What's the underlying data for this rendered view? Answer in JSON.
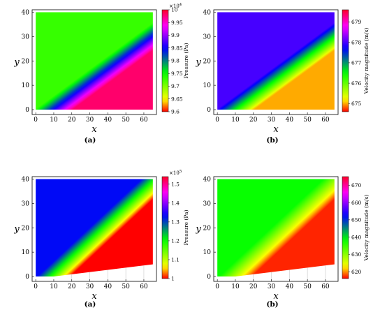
{
  "chart_data": [
    {
      "type": "heatmap",
      "caption": "(a)",
      "xlabel": "x",
      "ylabel": "y",
      "xlim": [
        -2,
        67
      ],
      "ylim": [
        -2,
        41
      ],
      "x_ticks": [
        0,
        10,
        20,
        30,
        40,
        50,
        60
      ],
      "y_ticks": [
        0,
        10,
        20,
        30,
        40
      ],
      "domain": {
        "x_min": 0,
        "x_max": 65,
        "y_min": 0,
        "y_max": 40,
        "wedge_start_x": 10,
        "lower_wall_end_y": 0
      },
      "field": {
        "upstream_value": 9.98,
        "downstream_value": 9.73,
        "wave_angle_end_y": 30
      },
      "colorbar": {
        "label": "Pressure (Pa)",
        "multiplier": "×10",
        "multiplier_exp": "4",
        "min": 9.6,
        "max": 10,
        "ticks": [
          "10",
          "9.95",
          "9.9",
          "9.85",
          "9.8",
          "9.75",
          "9.7",
          "9.65",
          "9.6"
        ]
      }
    },
    {
      "type": "heatmap",
      "caption": "(b)",
      "xlabel": "x",
      "ylabel": "y",
      "xlim": [
        -2,
        67
      ],
      "ylim": [
        -2,
        41
      ],
      "x_ticks": [
        0,
        10,
        20,
        30,
        40,
        50,
        60
      ],
      "y_ticks": [
        0,
        10,
        20,
        30,
        40
      ],
      "domain": {
        "x_min": 0,
        "x_max": 65,
        "y_min": 0,
        "y_max": 40,
        "wedge_start_x": 10,
        "lower_wall_end_y": 0
      },
      "field": {
        "upstream_value": 675,
        "downstream_value": 678,
        "wave_angle_end_y": 30
      },
      "colorbar": {
        "label": "Velocity magnitude (m/s)",
        "min": 674.6,
        "max": 679.6,
        "ticks": [
          "679",
          "678",
          "677",
          "676",
          "675"
        ]
      }
    },
    {
      "type": "heatmap",
      "caption": "(a)",
      "xlabel": "x",
      "ylabel": "y",
      "xlim": [
        -2,
        67
      ],
      "ylim": [
        -2,
        41
      ],
      "x_ticks": [
        0,
        10,
        20,
        30,
        40,
        50,
        60
      ],
      "y_ticks": [
        0,
        10,
        20,
        30,
        40
      ],
      "domain": {
        "x_min": 0,
        "x_max": 65,
        "y_min": 0,
        "y_max": 40,
        "wedge_start_x": 10,
        "lower_wall_end_y": 5
      },
      "field": {
        "upstream_value": 1.0,
        "downstream_value": 1.33,
        "wave_angle_end_y": 38
      },
      "colorbar": {
        "label": "Pressure (Pa)",
        "multiplier": "×10",
        "multiplier_exp": "5",
        "min": 1.0,
        "max": 1.54,
        "ticks": [
          "1.5",
          "1.4",
          "1.3",
          "1.2",
          "1.1",
          "1"
        ]
      }
    },
    {
      "type": "heatmap",
      "caption": "(b)",
      "xlabel": "x",
      "ylabel": "y",
      "xlim": [
        -2,
        67
      ],
      "ylim": [
        -2,
        41
      ],
      "x_ticks": [
        0,
        10,
        20,
        30,
        40,
        50,
        60
      ],
      "y_ticks": [
        0,
        10,
        20,
        30,
        40
      ],
      "domain": {
        "x_min": 0,
        "x_max": 65,
        "y_min": 0,
        "y_max": 40,
        "wedge_start_x": 10,
        "lower_wall_end_y": 5
      },
      "field": {
        "upstream_value": 617,
        "downstream_value": 638,
        "wave_angle_end_y": 38
      },
      "colorbar": {
        "label": "Velocity magnitude (m/s)",
        "min": 616,
        "max": 675,
        "ticks": [
          "670",
          "660",
          "650",
          "640",
          "630",
          "620"
        ]
      }
    }
  ]
}
